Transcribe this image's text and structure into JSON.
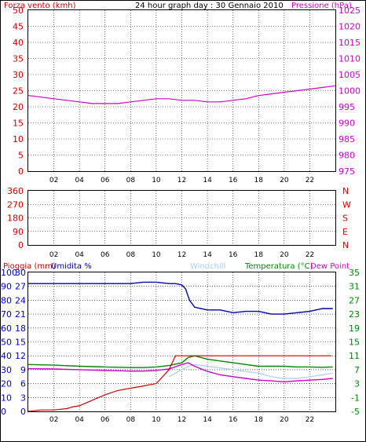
{
  "colors": {
    "wind_gust": "#cc0000",
    "wind_avg": "#0000cc",
    "pressure": "#cc00cc",
    "direction": "#cc0000",
    "rain": "#cc0000",
    "humidity": "#0000aa",
    "windchill": "#aaccee",
    "temperature": "#008800",
    "dewpoint": "#cc00cc",
    "grid": "#000000",
    "frame": "#000000",
    "tick_left_panel1": "#cc0000",
    "tick_right_panel1": "#cc00cc",
    "tick_left_panel3": "#0000cc",
    "tick_right_panel3": "#008800"
  },
  "chart_data": [
    {
      "type": "line",
      "title": "24 hour graph day : 30 Gennaio 2010",
      "ylabel_left": "Forza vento (kmh)",
      "ylabel_right": "Pressione (hPa)",
      "xlim": [
        0,
        24
      ],
      "ylim_left": [
        0,
        50
      ],
      "ylim_right": [
        975,
        1025
      ],
      "left_ticks": [
        "0",
        "5",
        "10",
        "15",
        "20",
        "25",
        "30",
        "35",
        "40",
        "45",
        "50"
      ],
      "right_ticks": [
        "975",
        "980",
        "985",
        "990",
        "995",
        "1000",
        "1005",
        "1010",
        "1015",
        "1020",
        "1025"
      ],
      "x_ticks": [
        "02",
        "04",
        "06",
        "08",
        "10",
        "12",
        "14",
        "16",
        "18",
        "20",
        "22"
      ],
      "grid": true,
      "series": [
        {
          "name": "Pressione (hPa)",
          "axis": "right",
          "x": [
            0,
            1,
            2,
            3,
            4,
            5,
            6,
            7,
            8,
            9,
            10,
            11,
            12,
            13,
            14,
            15,
            16,
            17,
            17.5,
            18,
            19,
            20,
            21,
            22,
            23,
            24
          ],
          "values": [
            998.5,
            998,
            997.5,
            997,
            996.5,
            996,
            996,
            996,
            996.5,
            997,
            997.5,
            997.5,
            997,
            997,
            996.5,
            996.5,
            997,
            997.5,
            998,
            998.5,
            999,
            999.5,
            1000,
            1000.5,
            1001,
            1001.5
          ]
        },
        {
          "axis": "left",
          "x": [],
          "values": []
        },
        {
          "axis": "left",
          "x": [],
          "values": []
        }
      ]
    },
    {
      "type": "line",
      "ylabel_right_letters": [
        "N",
        "W",
        "S",
        "E",
        "N"
      ],
      "xlim": [
        0,
        24
      ],
      "ylim": [
        0,
        360
      ],
      "left_ticks": [
        "0",
        "90",
        "180",
        "270",
        "360"
      ],
      "x_ticks": [
        "02",
        "04",
        "06",
        "08",
        "10",
        "12",
        "14",
        "16",
        "18",
        "20",
        "22"
      ],
      "grid": true,
      "series": [
        {
          "axis": "left",
          "x": [],
          "values": []
        }
      ]
    },
    {
      "type": "line",
      "ylabel_left_1": "Pioggia (mm)",
      "ylabel_left_2": "Umidita %",
      "label_windchill": "Windchill",
      "label_temperature": "Temperatura (°C)",
      "label_dewpoint": "Dew Point",
      "xlim": [
        0,
        24
      ],
      "ylim_left_humidity": [
        0,
        100
      ],
      "ylim_left_rain": [
        0,
        30
      ],
      "ylim_right": [
        -5,
        35
      ],
      "left_ticks_humidity": [
        "0",
        "10",
        "20",
        "30",
        "40",
        "50",
        "60",
        "70",
        "80",
        "90",
        "100"
      ],
      "left_ticks_rain": [
        "0",
        "3",
        "6",
        "9",
        "12",
        "15",
        "18",
        "21",
        "24",
        "27",
        "30"
      ],
      "right_ticks": [
        "-5",
        "-1",
        "3",
        "7",
        "11",
        "15",
        "19",
        "23",
        "27",
        "31",
        "35"
      ],
      "x_ticks": [
        "02",
        "04",
        "06",
        "08",
        "10",
        "12",
        "14",
        "16",
        "18",
        "20",
        "22"
      ],
      "grid": true,
      "series": [
        {
          "name": "Umidita %",
          "axis": "left_humidity",
          "x": [
            0,
            2,
            4,
            6,
            8,
            9,
            10,
            11,
            11.5,
            12,
            12.3,
            12.6,
            13,
            14,
            15,
            16,
            17,
            18,
            19,
            20,
            21,
            22,
            23,
            23.8
          ],
          "values": [
            92,
            92,
            92,
            92,
            92,
            93,
            93,
            92,
            92,
            91,
            88,
            80,
            75,
            73,
            73,
            71,
            72,
            72,
            70,
            70,
            71,
            72,
            74,
            74
          ]
        },
        {
          "name": "Pioggia (mm)",
          "axis": "left_rain",
          "x": [
            0,
            1,
            2,
            3,
            3.5,
            4,
            5,
            6,
            7,
            8,
            9,
            10,
            10.5,
            11,
            11.5,
            12,
            13,
            14,
            15,
            16,
            17,
            18,
            19,
            20,
            21,
            22,
            23,
            23.7
          ],
          "values": [
            0,
            0.3,
            0.3,
            0.6,
            1,
            1.2,
            2.4,
            3.6,
            4.5,
            5,
            5.5,
            6,
            7.5,
            9,
            12,
            12,
            12,
            12,
            12,
            12,
            12,
            12,
            12,
            12,
            12,
            12,
            12,
            12
          ]
        },
        {
          "name": "Temperatura (°C)",
          "axis": "right",
          "x": [
            0,
            2,
            4,
            6,
            8,
            9,
            10,
            11,
            12,
            12.5,
            13,
            14,
            15,
            16,
            17,
            18,
            19,
            20,
            21,
            22,
            23,
            23.8
          ],
          "values": [
            8.5,
            8.3,
            8,
            7.8,
            7.6,
            7.6,
            7.8,
            8.2,
            9,
            10.5,
            11,
            10,
            9.5,
            9,
            8.5,
            8,
            8,
            8,
            7.8,
            7.8,
            7.7,
            7.8
          ]
        },
        {
          "name": "Windchill",
          "axis": "right",
          "x": [
            11,
            12,
            12.5,
            13,
            14,
            15,
            16,
            17,
            18,
            19,
            20,
            21,
            22,
            23,
            23.8
          ],
          "values": [
            5,
            7,
            8,
            8.5,
            8,
            7.5,
            7,
            6.5,
            6,
            5,
            4.5,
            4.5,
            5,
            5.5,
            6
          ]
        },
        {
          "name": "Dew Point",
          "axis": "right",
          "x": [
            0,
            2,
            4,
            6,
            8,
            9,
            10,
            11,
            12,
            12.5,
            13,
            14,
            15,
            16,
            17,
            18,
            19,
            20,
            21,
            22,
            23,
            23.8
          ],
          "values": [
            7.3,
            7.2,
            7,
            6.8,
            6.6,
            6.6,
            6.8,
            7.2,
            8.5,
            9,
            8,
            6.5,
            5.5,
            5,
            4.5,
            4,
            3.8,
            3.5,
            3.8,
            4,
            4.2,
            4.5
          ]
        }
      ]
    }
  ]
}
